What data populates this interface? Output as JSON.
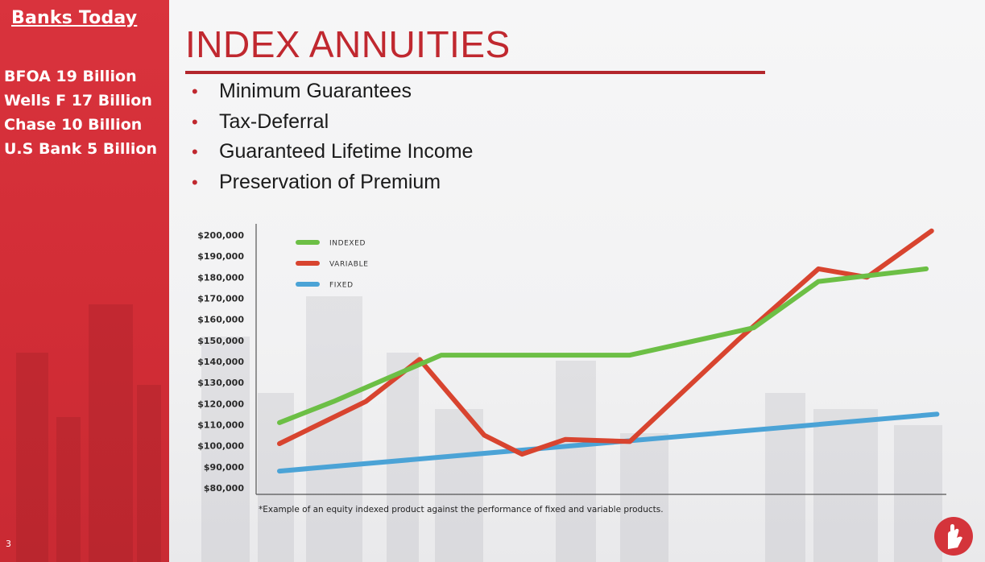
{
  "sidebar": {
    "title": "Banks Today",
    "banks": [
      "BFOA 19 Billion",
      "Wells F 17 Billion",
      "Chase 10 Billion",
      "U.S Bank 5 Billion"
    ],
    "slide_number": "3"
  },
  "slide": {
    "title": "INDEX ANNUITIES",
    "bullets": [
      "Minimum Guarantees",
      "Tax-Deferral",
      "Guaranteed Lifetime Income",
      "Preservation of Premium"
    ],
    "footnote": "*Example of an equity indexed product against the performance of fixed and variable products."
  },
  "colors": {
    "accent": "#c0282f",
    "sidebar": "#d22d36",
    "indexed": "#6cbf45",
    "variable": "#d8442f",
    "fixed": "#4ba3d6"
  },
  "chart_data": {
    "type": "line",
    "yticks": [
      "$80,000",
      "$90,000",
      "$100,000",
      "$110,000",
      "$120,000",
      "$130,000",
      "$140,000",
      "$150,000",
      "$160,000",
      "$170,000",
      "$180,000",
      "$190,000",
      "$200,000"
    ],
    "ylim": [
      80000,
      200000
    ],
    "x": [
      0,
      1,
      2,
      3,
      4,
      5,
      6,
      7,
      8,
      9,
      10,
      11,
      12
    ],
    "legend_position": "top-left",
    "series": [
      {
        "name": "INDEXED",
        "color": "#6cbf45",
        "points": [
          [
            0,
            111000
          ],
          [
            1,
            121000
          ],
          [
            2,
            132000
          ],
          [
            3,
            143000
          ],
          [
            6.5,
            143000
          ],
          [
            8.8,
            156000
          ],
          [
            10,
            178000
          ],
          [
            12,
            184000
          ]
        ]
      },
      {
        "name": "VARIABLE",
        "color": "#d8442f",
        "points": [
          [
            0,
            101000
          ],
          [
            1.6,
            121000
          ],
          [
            2.6,
            141000
          ],
          [
            3.8,
            105000
          ],
          [
            4.5,
            96000
          ],
          [
            5.3,
            103000
          ],
          [
            6.5,
            102000
          ],
          [
            8.5,
            150000
          ],
          [
            10,
            184000
          ],
          [
            10.9,
            180000
          ],
          [
            12.1,
            202000
          ]
        ]
      },
      {
        "name": "FIXED",
        "color": "#4ba3d6",
        "points": [
          [
            0,
            88000
          ],
          [
            12.2,
            115000
          ]
        ]
      }
    ]
  }
}
